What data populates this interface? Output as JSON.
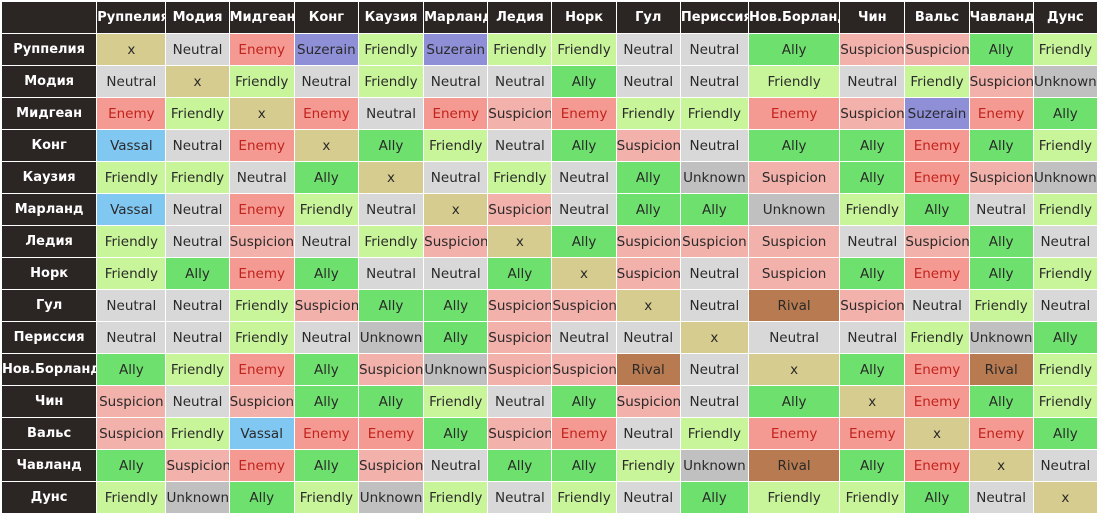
{
  "countries": [
    "Руппелия",
    "Модия",
    "Мидгеан",
    "Конг",
    "Каузия",
    "Марланд",
    "Ледия",
    "Норк",
    "Гул",
    "Периссия",
    "Нов.Борланд",
    "Чин",
    "Вальс",
    "Чавланд",
    "Дунс"
  ],
  "matrix": [
    [
      "x",
      "Neutral",
      "Enemy",
      "Suzerain",
      "Friendly",
      "Suzerain",
      "Friendly",
      "Friendly",
      "Neutral",
      "Neutral",
      "Ally",
      "Suspicion",
      "Suspicion",
      "Ally",
      "Friendly"
    ],
    [
      "Neutral",
      "x",
      "Friendly",
      "Neutral",
      "Friendly",
      "Neutral",
      "Neutral",
      "Ally",
      "Neutral",
      "Neutral",
      "Friendly",
      "Neutral",
      "Friendly",
      "Suspicion",
      "Unknown"
    ],
    [
      "Enemy",
      "Friendly",
      "x",
      "Enemy",
      "Neutral",
      "Enemy",
      "Suspicion",
      "Enemy",
      "Friendly",
      "Friendly",
      "Enemy",
      "Suspicion",
      "Suzerain",
      "Enemy",
      "Ally"
    ],
    [
      "Vassal",
      "Neutral",
      "Enemy",
      "x",
      "Ally",
      "Friendly",
      "Neutral",
      "Ally",
      "Suspicion",
      "Neutral",
      "Ally",
      "Ally",
      "Enemy",
      "Ally",
      "Friendly"
    ],
    [
      "Friendly",
      "Friendly",
      "Neutral",
      "Ally",
      "x",
      "Neutral",
      "Friendly",
      "Neutral",
      "Ally",
      "Unknown",
      "Suspicion",
      "Ally",
      "Enemy",
      "Suspicion",
      "Unknown"
    ],
    [
      "Vassal",
      "Neutral",
      "Enemy",
      "Friendly",
      "Neutral",
      "x",
      "Suspicion",
      "Neutral",
      "Ally",
      "Ally",
      "Unknown",
      "Friendly",
      "Ally",
      "Neutral",
      "Friendly"
    ],
    [
      "Friendly",
      "Neutral",
      "Suspicion",
      "Neutral",
      "Friendly",
      "Suspicion",
      "x",
      "Ally",
      "Suspicion",
      "Suspicion",
      "Suspicion",
      "Neutral",
      "Suspicion",
      "Ally",
      "Neutral"
    ],
    [
      "Friendly",
      "Ally",
      "Enemy",
      "Ally",
      "Neutral",
      "Neutral",
      "Ally",
      "x",
      "Suspicion",
      "Neutral",
      "Suspicion",
      "Ally",
      "Enemy",
      "Ally",
      "Friendly"
    ],
    [
      "Neutral",
      "Neutral",
      "Friendly",
      "Suspicion",
      "Ally",
      "Ally",
      "Suspicion",
      "Suspicion",
      "x",
      "Neutral",
      "Rival",
      "Suspicion",
      "Neutral",
      "Friendly",
      "Neutral"
    ],
    [
      "Neutral",
      "Neutral",
      "Friendly",
      "Neutral",
      "Unknown",
      "Ally",
      "Suspicion",
      "Neutral",
      "Neutral",
      "x",
      "Neutral",
      "Neutral",
      "Friendly",
      "Unknown",
      "Ally"
    ],
    [
      "Ally",
      "Friendly",
      "Enemy",
      "Ally",
      "Suspicion",
      "Unknown",
      "Suspicion",
      "Suspicion",
      "Rival",
      "Neutral",
      "x",
      "Ally",
      "Enemy",
      "Rival",
      "Friendly"
    ],
    [
      "Suspicion",
      "Neutral",
      "Suspicion",
      "Ally",
      "Ally",
      "Friendly",
      "Neutral",
      "Ally",
      "Suspicion",
      "Neutral",
      "Ally",
      "x",
      "Enemy",
      "Ally",
      "Friendly"
    ],
    [
      "Suspicion",
      "Friendly",
      "Vassal",
      "Enemy",
      "Enemy",
      "Ally",
      "Suspicion",
      "Enemy",
      "Neutral",
      "Friendly",
      "Enemy",
      "Enemy",
      "x",
      "Enemy",
      "Ally"
    ],
    [
      "Ally",
      "Suspicion",
      "Enemy",
      "Ally",
      "Suspicion",
      "Neutral",
      "Ally",
      "Ally",
      "Friendly",
      "Unknown",
      "Rival",
      "Ally",
      "Enemy",
      "x",
      "Neutral"
    ],
    [
      "Friendly",
      "Unknown",
      "Ally",
      "Friendly",
      "Unknown",
      "Friendly",
      "Neutral",
      "Friendly",
      "Neutral",
      "Ally",
      "Friendly",
      "Friendly",
      "Ally",
      "Neutral",
      "x"
    ]
  ],
  "status_colors": {
    "x": "#d6cc8f",
    "Neutral": "#d8d8d8",
    "Enemy": "#f49a92",
    "Suzerain": "#8f8fd8",
    "Friendly": "#c8f59a",
    "Ally": "#6ee06e",
    "Suspicion": "#f2b1ab",
    "Unknown": "#c0c0c0",
    "Vassal": "#80c8f2",
    "Rival": "#b87a50"
  }
}
